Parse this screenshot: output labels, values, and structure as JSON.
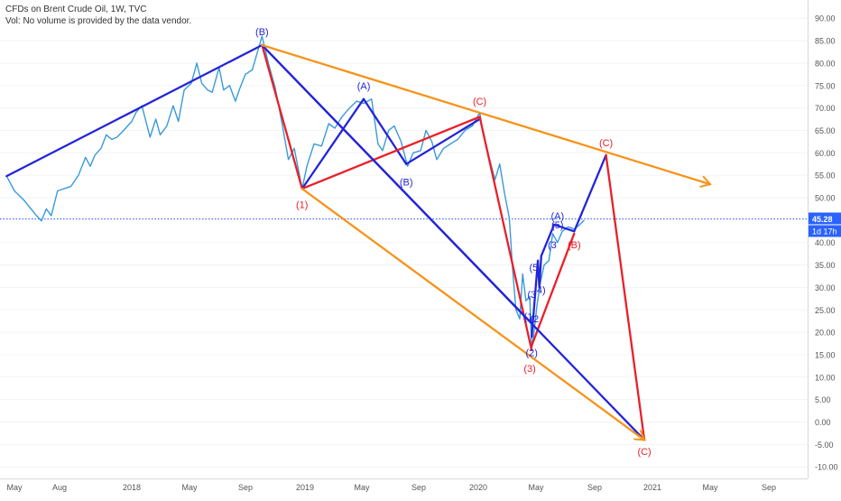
{
  "header": {
    "title": "CFDs on Brent Crude Oil, 1W, TVC",
    "volume_note": "Vol: No volume is provided by the data vendor."
  },
  "chart_data": {
    "type": "line",
    "x_ticks": [
      "May",
      "Aug",
      "2018",
      "May",
      "Sep",
      "2019",
      "May",
      "Sep",
      "2020",
      "May",
      "Sep",
      "2021",
      "May",
      "Sep"
    ],
    "y_ticks": [
      "90.00",
      "85.00",
      "80.00",
      "75.00",
      "70.00",
      "65.00",
      "60.00",
      "55.00",
      "50.00",
      "45.00",
      "40.00",
      "35.00",
      "30.00",
      "25.00",
      "20.00",
      "15.00",
      "10.00",
      "5.00",
      "0.00",
      "-5.00",
      "-10.00"
    ],
    "ylim": [
      -11,
      92
    ],
    "last_price": {
      "label": "45.28",
      "value": 45.28,
      "color": "#2962ff"
    },
    "countdown": {
      "label": "1d 17h",
      "color": "#2962ff"
    },
    "price_series": {
      "color": "#3a9ad9",
      "points": [
        [
          "2017-04-15",
          54.8
        ],
        [
          "2017-05-01",
          51.5
        ],
        [
          "2017-05-20",
          49.5
        ],
        [
          "2017-06-15",
          46.0
        ],
        [
          "2017-06-25",
          44.8
        ],
        [
          "2017-07-05",
          47.5
        ],
        [
          "2017-07-15",
          46.0
        ],
        [
          "2017-07-28",
          51.5
        ],
        [
          "2017-08-10",
          52.0
        ],
        [
          "2017-08-25",
          52.5
        ],
        [
          "2017-09-10",
          55.0
        ],
        [
          "2017-09-25",
          59.0
        ],
        [
          "2017-10-05",
          57.0
        ],
        [
          "2017-10-15",
          59.5
        ],
        [
          "2017-10-28",
          61.0
        ],
        [
          "2017-11-08",
          64.0
        ],
        [
          "2017-11-20",
          63.0
        ],
        [
          "2017-12-01",
          63.5
        ],
        [
          "2017-12-15",
          65.0
        ],
        [
          "2018-01-01",
          67.0
        ],
        [
          "2018-01-10",
          69.0
        ],
        [
          "2018-01-22",
          70.5
        ],
        [
          "2018-02-08",
          63.5
        ],
        [
          "2018-02-20",
          67.5
        ],
        [
          "2018-03-01",
          64.0
        ],
        [
          "2018-03-15",
          66.0
        ],
        [
          "2018-03-28",
          70.5
        ],
        [
          "2018-04-08",
          67.0
        ],
        [
          "2018-04-20",
          74.0
        ],
        [
          "2018-05-05",
          75.5
        ],
        [
          "2018-05-17",
          80.0
        ],
        [
          "2018-05-28",
          75.5
        ],
        [
          "2018-06-10",
          74.0
        ],
        [
          "2018-06-20",
          73.5
        ],
        [
          "2018-07-05",
          79.0
        ],
        [
          "2018-07-15",
          74.0
        ],
        [
          "2018-07-28",
          75.0
        ],
        [
          "2018-08-10",
          71.5
        ],
        [
          "2018-08-20",
          74.5
        ],
        [
          "2018-09-01",
          77.5
        ],
        [
          "2018-09-15",
          78.5
        ],
        [
          "2018-10-05",
          86.0
        ],
        [
          "2018-10-18",
          80.0
        ],
        [
          "2018-11-01",
          74.5
        ],
        [
          "2018-11-15",
          66.5
        ],
        [
          "2018-11-28",
          58.5
        ],
        [
          "2018-12-10",
          61.0
        ],
        [
          "2018-12-26",
          52.0
        ],
        [
          "2019-01-05",
          57.0
        ],
        [
          "2019-01-20",
          62.0
        ],
        [
          "2019-02-05",
          61.5
        ],
        [
          "2019-02-20",
          66.5
        ],
        [
          "2019-03-05",
          65.5
        ],
        [
          "2019-03-20",
          68.0
        ],
        [
          "2019-04-05",
          70.0
        ],
        [
          "2019-04-20",
          71.5
        ],
        [
          "2019-05-05",
          71.0
        ],
        [
          "2019-05-22",
          72.0
        ],
        [
          "2019-06-05",
          62.0
        ],
        [
          "2019-06-15",
          60.5
        ],
        [
          "2019-06-28",
          65.0
        ],
        [
          "2019-07-10",
          66.0
        ],
        [
          "2019-07-25",
          62.5
        ],
        [
          "2019-08-08",
          57.0
        ],
        [
          "2019-08-20",
          60.0
        ],
        [
          "2019-09-05",
          60.5
        ],
        [
          "2019-09-16",
          65.0
        ],
        [
          "2019-09-28",
          62.5
        ],
        [
          "2019-10-08",
          58.5
        ],
        [
          "2019-10-22",
          61.0
        ],
        [
          "2019-11-05",
          62.0
        ],
        [
          "2019-11-20",
          63.0
        ],
        [
          "2019-12-05",
          65.0
        ],
        [
          "2019-12-20",
          66.0
        ],
        [
          "2020-01-04",
          69.0
        ],
        [
          "2020-01-12",
          64.0
        ],
        [
          "2020-01-25",
          58.5
        ],
        [
          "2020-02-05",
          54.0
        ],
        [
          "2020-02-15",
          57.5
        ],
        [
          "2020-02-25",
          51.0
        ],
        [
          "2020-03-06",
          45.5
        ],
        [
          "2020-03-13",
          34.0
        ],
        [
          "2020-03-20",
          25.0
        ],
        [
          "2020-03-28",
          23.0
        ],
        [
          "2020-04-03",
          33.0
        ],
        [
          "2020-04-10",
          27.0
        ],
        [
          "2020-04-18",
          28.0
        ],
        [
          "2020-04-22",
          16.0
        ],
        [
          "2020-04-26",
          19.5
        ],
        [
          "2020-05-03",
          26.0
        ],
        [
          "2020-05-10",
          31.0
        ],
        [
          "2020-05-18",
          35.0
        ],
        [
          "2020-05-28",
          36.0
        ],
        [
          "2020-06-05",
          42.0
        ],
        [
          "2020-06-15",
          40.0
        ],
        [
          "2020-06-25",
          42.5
        ],
        [
          "2020-07-08",
          43.5
        ],
        [
          "2020-07-20",
          43.0
        ],
        [
          "2020-08-01",
          44.0
        ],
        [
          "2020-08-10",
          45.0
        ]
      ]
    },
    "projections": [
      {
        "color": "#2424d8",
        "points": [
          [
            "2017-04-15",
            54.8
          ],
          [
            "2018-10-05",
            84.0
          ]
        ]
      },
      {
        "color": "#e8202a",
        "points": [
          [
            "2018-10-05",
            84.0
          ],
          [
            "2018-12-26",
            52.0
          ]
        ]
      },
      {
        "color": "#2424d8",
        "points": [
          [
            "2018-12-26",
            52.0
          ],
          [
            "2019-05-05",
            72.0
          ]
        ]
      },
      {
        "color": "#2424d8",
        "points": [
          [
            "2019-05-05",
            72.0
          ],
          [
            "2019-08-05",
            57.5
          ]
        ]
      },
      {
        "color": "#2424d8",
        "points": [
          [
            "2019-08-05",
            57.5
          ],
          [
            "2020-01-04",
            67.5
          ]
        ]
      },
      {
        "color": "#e8202a",
        "points": [
          [
            "2018-12-26",
            52.0
          ],
          [
            "2020-01-04",
            68.0
          ]
        ]
      },
      {
        "color": "#e8202a",
        "points": [
          [
            "2020-01-04",
            68.0
          ],
          [
            "2020-04-22",
            16.0
          ]
        ]
      },
      {
        "color": "#2424d8",
        "points": [
          [
            "2018-10-05",
            84.0
          ],
          [
            "2020-04-22",
            22.0
          ]
        ]
      },
      {
        "color": "#2424d8",
        "points": [
          [
            "2020-04-22",
            19.0
          ],
          [
            "2020-05-05",
            36.0
          ],
          [
            "2020-05-08",
            30.0
          ],
          [
            "2020-05-12",
            37.0
          ],
          [
            "2020-06-08",
            44.0
          ],
          [
            "2020-07-20",
            42.5
          ],
          [
            "2020-09-25",
            59.5
          ]
        ]
      },
      {
        "color": "#e8202a",
        "points": [
          [
            "2020-04-22",
            17.0
          ],
          [
            "2020-07-20",
            42.0
          ]
        ]
      },
      {
        "color": "#e8202a",
        "points": [
          [
            "2020-09-25",
            59.5
          ],
          [
            "2020-12-15",
            -4.0
          ]
        ]
      },
      {
        "color": "#2424d8",
        "points": [
          [
            "2018-10-05",
            84.0
          ],
          [
            "2020-12-15",
            -4.0
          ]
        ]
      },
      {
        "color": "#f7931a",
        "points": [
          [
            "2018-10-05",
            84.0
          ],
          [
            "2021-05-01",
            53.0
          ]
        ],
        "arrow": true
      },
      {
        "color": "#f7931a",
        "points": [
          [
            "2018-12-26",
            52.0
          ],
          [
            "2020-12-15",
            -4.0
          ]
        ],
        "arrow": true
      }
    ],
    "wave_labels": [
      {
        "text": "(B)",
        "x": "2018-10-05",
        "y": 87.0,
        "color": "#2424d8"
      },
      {
        "text": "(1)",
        "x": "2018-12-26",
        "y": 48.5,
        "color": "#e8202a"
      },
      {
        "text": "(A)",
        "x": "2019-05-05",
        "y": 75.0,
        "color": "#2424d8"
      },
      {
        "text": "(B)",
        "x": "2019-08-05",
        "y": 53.5,
        "color": "#2424d8"
      },
      {
        "text": "(C)",
        "x": "2020-01-04",
        "y": 71.5,
        "color": "#e8202a"
      },
      {
        "text": "(2)",
        "x": "2020-04-22",
        "y": 15.5,
        "color": "#2424d8"
      },
      {
        "text": "(3)",
        "x": "2020-04-18",
        "y": 12.0,
        "color": "#e8202a"
      },
      {
        "text": "(3",
        "x": "2020-04-22",
        "y": 28.5,
        "color": "#2424d8"
      },
      {
        "text": "(5",
        "x": "2020-04-26",
        "y": 34.5,
        "color": "#2424d8"
      },
      {
        "text": "(1",
        "x": "2020-04-15",
        "y": 23.5,
        "color": "#2424d8"
      },
      {
        "text": "(2",
        "x": "2020-04-28",
        "y": 23.0,
        "color": "#2424d8"
      },
      {
        "text": "4)",
        "x": "2020-05-12",
        "y": 29.5,
        "color": "#2424d8"
      },
      {
        "text": "(3",
        "x": "2020-06-04",
        "y": 39.5,
        "color": "#2424d8"
      },
      {
        "text": "(A)",
        "x": "2020-06-15",
        "y": 46.0,
        "color": "#2424d8"
      },
      {
        "text": "(5)",
        "x": "2020-06-15",
        "y": 44.0,
        "color": "#2424d8"
      },
      {
        "text": "(B)",
        "x": "2020-07-20",
        "y": 39.5,
        "color": "#e8202a"
      },
      {
        "text": "(C)",
        "x": "2020-09-25",
        "y": 62.3,
        "color": "#e8202a"
      },
      {
        "text": "(C)",
        "x": "2020-12-15",
        "y": -6.5,
        "color": "#e8202a"
      }
    ]
  }
}
